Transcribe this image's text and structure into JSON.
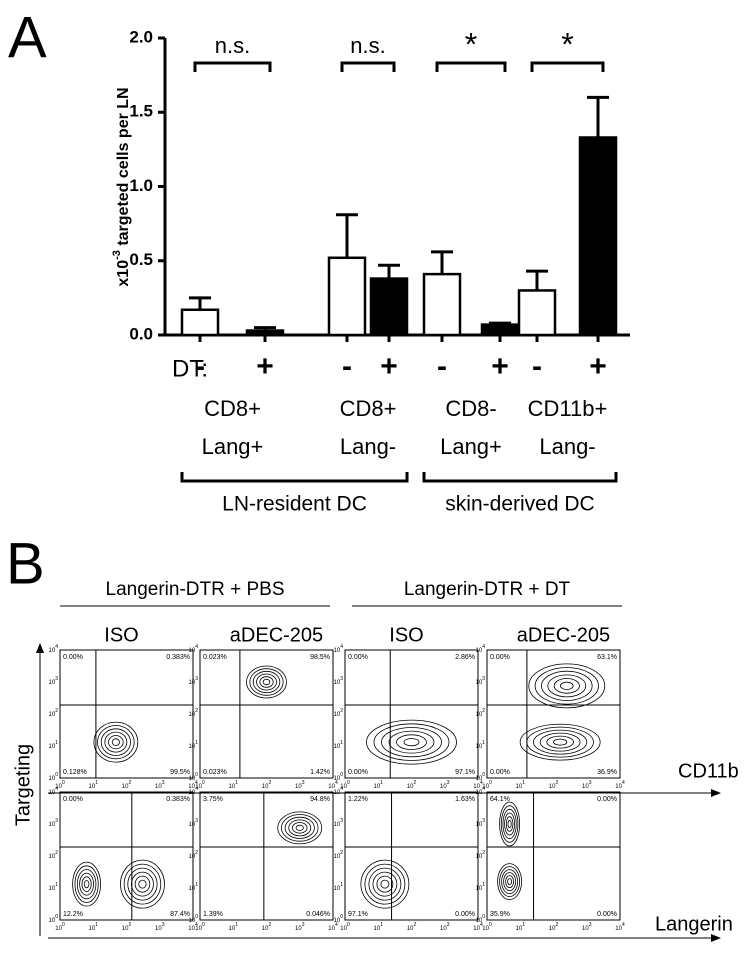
{
  "chart_data": {
    "type": "bar",
    "panel_label": "A",
    "ylabel": {
      "prefix": "x10",
      "superscript": "-3",
      "text": " targeted cells per LN"
    },
    "category_axis_label": "DT:",
    "categories": [
      "-",
      "+",
      "-",
      "+",
      "-",
      "+",
      "-",
      "+"
    ],
    "values": [
      0.17,
      0.03,
      0.52,
      0.38,
      0.41,
      0.07,
      0.3,
      1.33
    ],
    "errors": [
      0.08,
      0.02,
      0.29,
      0.09,
      0.15,
      0.01,
      0.13,
      0.27
    ],
    "colors": [
      "#ffffff",
      "#000000",
      "#ffffff",
      "#000000",
      "#ffffff",
      "#000000",
      "#ffffff",
      "#000000"
    ],
    "groups": [
      [
        "CD8+",
        "Lang+"
      ],
      [
        "CD8+",
        "Lang-"
      ],
      [
        "CD8-",
        "Lang+"
      ],
      [
        "CD11b+",
        "Lang-"
      ]
    ],
    "significance": [
      "n.s.",
      "n.s.",
      "*",
      "*"
    ],
    "supergroups": [
      "LN-resident DC",
      "skin-derived DC"
    ],
    "ylim": [
      0,
      2.0
    ],
    "yticks": [
      {
        "value": 0,
        "label": "0.0"
      },
      0.5,
      {
        "value": 1,
        "label": "1.0"
      },
      1.5,
      {
        "value": 2,
        "label": "2.0"
      }
    ]
  },
  "panel_b": {
    "panel_label": "B",
    "conditions": [
      "Langerin-DTR + PBS",
      "Langerin-DTR + DT"
    ],
    "columns": [
      "ISO",
      "aDEC-205",
      "ISO",
      "aDEC-205"
    ],
    "y_axis_label": "Targeting",
    "row_axis_labels": [
      "CD11b",
      "Langerin"
    ],
    "axis_base": "10",
    "axis_exponents": [
      "0",
      "1",
      "2",
      "3",
      "4"
    ],
    "rows": [
      [
        [
          "0.00%",
          "0.383%",
          "0.128%",
          "99.5%"
        ],
        [
          "0.023%",
          "98.5%",
          "0.023%",
          "1.42%"
        ],
        [
          "0.00%",
          "2.86%",
          "0.00%",
          "97.1%"
        ],
        [
          "0.00%",
          "63.1%",
          "0.00%",
          "36.9%"
        ]
      ],
      [
        [
          "0.00%",
          "0.383%",
          "12.2%",
          "87.4%"
        ],
        [
          "3.75%",
          "94.8%",
          "1.39%",
          "0.046%"
        ],
        [
          "1.22%",
          "1.63%",
          "97.1%",
          "0.00%"
        ],
        [
          "64.1%",
          "0.00%",
          "35.9%",
          "0.00%"
        ]
      ]
    ]
  }
}
